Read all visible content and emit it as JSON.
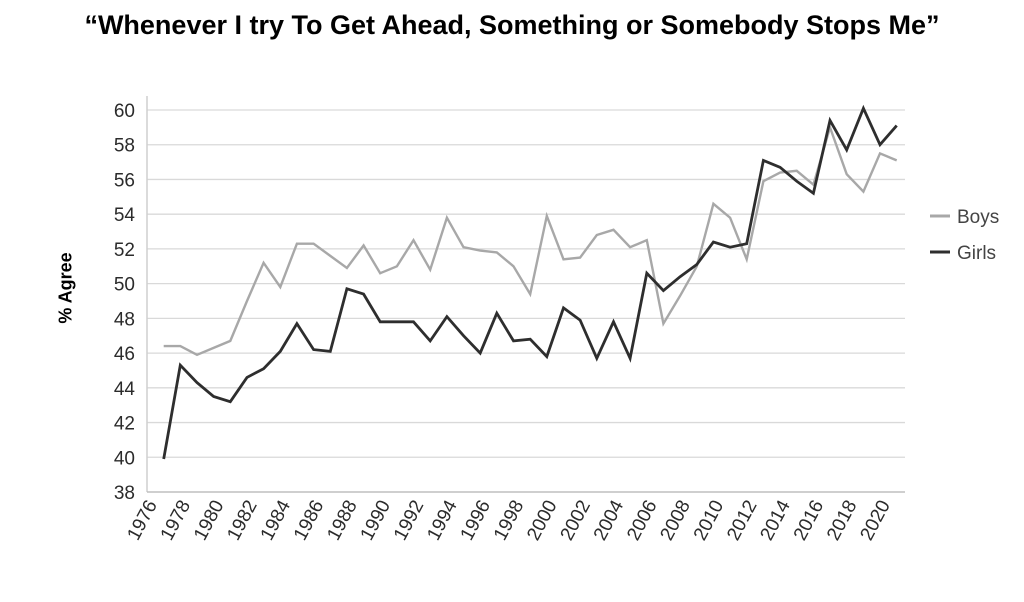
{
  "title": "“Whenever I try To Get Ahead, Something or Somebody Stops Me”",
  "chart_data": {
    "type": "line",
    "title": "“Whenever I try To Get Ahead, Something or Somebody Stops Me”",
    "xlabel": "",
    "ylabel": "% Agree",
    "xlim": [
      1976,
      2021.5
    ],
    "ylim": [
      38,
      61
    ],
    "yticks": [
      38,
      40,
      42,
      44,
      46,
      48,
      50,
      52,
      54,
      56,
      58,
      60
    ],
    "xticks": [
      1976,
      1978,
      1980,
      1982,
      1984,
      1986,
      1988,
      1990,
      1992,
      1994,
      1996,
      1998,
      2000,
      2002,
      2004,
      2006,
      2008,
      2010,
      2012,
      2014,
      2016,
      2018,
      2020
    ],
    "grid": true,
    "legend_position": "right",
    "series": [
      {
        "name": "Boys",
        "color": "#a8a8a8",
        "x": [
          1977,
          1978,
          1979,
          1980,
          1981,
          1982,
          1983,
          1984,
          1985,
          1986,
          1987,
          1988,
          1989,
          1990,
          1991,
          1992,
          1993,
          1994,
          1995,
          1996,
          1997,
          1998,
          1999,
          2000,
          2001,
          2002,
          2003,
          2004,
          2005,
          2006,
          2007,
          2008,
          2009,
          2010,
          2011,
          2012,
          2013,
          2014,
          2015,
          2016,
          2017,
          2018,
          2019,
          2020,
          2021
        ],
        "values": [
          46.4,
          46.4,
          45.9,
          46.3,
          46.7,
          49.0,
          51.2,
          49.8,
          52.3,
          52.3,
          51.6,
          50.9,
          52.2,
          50.6,
          51.0,
          52.5,
          50.8,
          53.8,
          52.1,
          51.9,
          51.8,
          51.0,
          49.4,
          53.9,
          51.4,
          51.5,
          52.8,
          53.1,
          52.1,
          52.5,
          47.7,
          49.3,
          51.0,
          54.6,
          53.8,
          51.4,
          55.9,
          56.4,
          56.5,
          55.7,
          59.0,
          56.3,
          55.3,
          57.5,
          57.1
        ]
      },
      {
        "name": "Girls",
        "color": "#2e2e2e",
        "x": [
          1977,
          1978,
          1979,
          1980,
          1981,
          1982,
          1983,
          1984,
          1985,
          1986,
          1987,
          1988,
          1989,
          1990,
          1991,
          1992,
          1993,
          1994,
          1995,
          1996,
          1997,
          1998,
          1999,
          2000,
          2001,
          2002,
          2003,
          2004,
          2005,
          2006,
          2007,
          2008,
          2009,
          2010,
          2011,
          2012,
          2013,
          2014,
          2015,
          2016,
          2017,
          2018,
          2019,
          2020,
          2021
        ],
        "values": [
          39.9,
          45.3,
          44.3,
          43.5,
          43.2,
          44.6,
          45.1,
          46.1,
          47.7,
          46.2,
          46.1,
          49.7,
          49.4,
          47.8,
          47.8,
          47.8,
          46.7,
          48.1,
          47.0,
          46.0,
          48.3,
          46.7,
          46.8,
          45.8,
          48.6,
          47.9,
          45.7,
          47.8,
          45.7,
          50.6,
          49.6,
          50.4,
          51.1,
          52.4,
          52.1,
          52.3,
          57.1,
          56.7,
          55.9,
          55.2,
          59.4,
          57.7,
          60.1,
          58.0,
          59.1
        ]
      }
    ]
  }
}
